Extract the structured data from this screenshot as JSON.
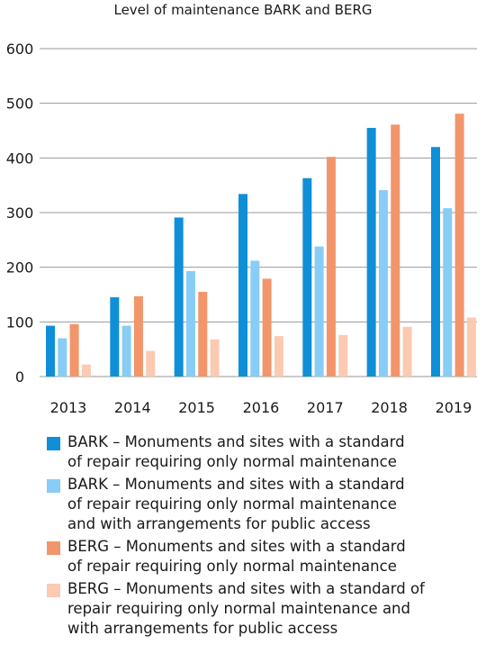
{
  "chart_data": {
    "type": "bar",
    "title": "Level of maintenance BARK and BERG",
    "categories": [
      "2013",
      "2014",
      "2015",
      "2016",
      "2017",
      "2018",
      "2019"
    ],
    "ylim": [
      0,
      600
    ],
    "yticks": [
      "0",
      "100",
      "200",
      "300",
      "400",
      "500",
      "600"
    ],
    "grid": true,
    "legend_position": "bottom",
    "series": [
      {
        "name": "BARK – Monuments and sites with a standard\nof repair requiring only normal maintenance",
        "color": "#0f8fd8",
        "values": [
          93,
          145,
          291,
          334,
          363,
          455,
          420
        ]
      },
      {
        "name": "BARK – Monuments and sites with a standard\nof repair requiring only normal maintenance\nand with arrangements for public access",
        "color": "#87cdf5",
        "values": [
          70,
          93,
          193,
          212,
          238,
          341,
          308
        ]
      },
      {
        "name": "BERG – Monuments and sites with a standard\nof repair requiring only normal maintenance",
        "color": "#f2956a",
        "values": [
          96,
          147,
          155,
          179,
          402,
          461,
          481
        ]
      },
      {
        "name": "BERG – Monuments and sites with a standard of\nrepair requiring only normal maintenance and\nwith arrangements for public access",
        "color": "#fbcab1",
        "values": [
          22,
          47,
          68,
          74,
          76,
          91,
          108
        ]
      }
    ]
  }
}
